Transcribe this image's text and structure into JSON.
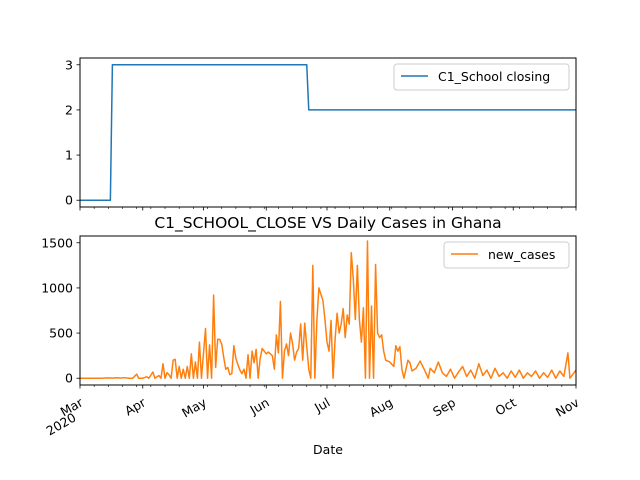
{
  "chart_data": [
    {
      "type": "line",
      "title": "",
      "xlabel": "",
      "ylabel": "",
      "x_range": [
        "2020-03-01",
        "2020-11-01"
      ],
      "ylim": [
        -0.15,
        3.15
      ],
      "yticks": [
        "0",
        "1",
        "2",
        "3"
      ],
      "grid": false,
      "legend_position": "top-right",
      "series": [
        {
          "name": "C1_School closing",
          "color": "#1f77b4",
          "points": [
            [
              "2020-03-01",
              0
            ],
            [
              "2020-03-16",
              0
            ],
            [
              "2020-03-17",
              3
            ],
            [
              "2020-06-21",
              3
            ],
            [
              "2020-06-22",
              2
            ],
            [
              "2020-11-01",
              2
            ]
          ]
        }
      ]
    },
    {
      "type": "line",
      "title": "C1_SCHOOL_CLOSE VS Daily Cases in Ghana",
      "xlabel": "Date",
      "ylabel": "",
      "x_range": [
        "2020-03-01",
        "2020-11-01"
      ],
      "ylim": [
        -75,
        1575
      ],
      "yticks": [
        "0",
        "500",
        "1000",
        "1500"
      ],
      "xticks": [
        {
          "date": "2020-03-01",
          "label": "Mar",
          "sublabel": "2020"
        },
        {
          "date": "2020-04-01",
          "label": "Apr"
        },
        {
          "date": "2020-05-01",
          "label": "May"
        },
        {
          "date": "2020-06-01",
          "label": "Jun"
        },
        {
          "date": "2020-07-01",
          "label": "Jul"
        },
        {
          "date": "2020-08-01",
          "label": "Aug"
        },
        {
          "date": "2020-09-01",
          "label": "Sep"
        },
        {
          "date": "2020-10-01",
          "label": "Oct"
        },
        {
          "date": "2020-11-01",
          "label": "Nov"
        }
      ],
      "grid": false,
      "legend_position": "top-right",
      "series": [
        {
          "name": "new_cases",
          "color": "#ff7f0e",
          "points": [
            [
              "2020-03-01",
              0
            ],
            [
              "2020-03-12",
              0
            ],
            [
              "2020-03-13",
              2
            ],
            [
              "2020-03-15",
              4
            ],
            [
              "2020-03-17",
              1
            ],
            [
              "2020-03-19",
              5
            ],
            [
              "2020-03-21",
              3
            ],
            [
              "2020-03-23",
              6
            ],
            [
              "2020-03-25",
              0
            ],
            [
              "2020-03-27",
              0
            ],
            [
              "2020-03-29",
              45
            ],
            [
              "2020-03-30",
              0
            ],
            [
              "2020-04-01",
              0
            ],
            [
              "2020-04-03",
              16
            ],
            [
              "2020-04-04",
              0
            ],
            [
              "2020-04-06",
              69
            ],
            [
              "2020-04-07",
              0
            ],
            [
              "2020-04-09",
              30
            ],
            [
              "2020-04-10",
              0
            ],
            [
              "2020-04-11",
              160
            ],
            [
              "2020-04-12",
              0
            ],
            [
              "2020-04-13",
              62
            ],
            [
              "2020-04-14",
              37
            ],
            [
              "2020-04-15",
              0
            ],
            [
              "2020-04-16",
              200
            ],
            [
              "2020-04-17",
              210
            ],
            [
              "2020-04-18",
              0
            ],
            [
              "2020-04-19",
              130
            ],
            [
              "2020-04-20",
              0
            ],
            [
              "2020-04-21",
              100
            ],
            [
              "2020-04-22",
              0
            ],
            [
              "2020-04-23",
              130
            ],
            [
              "2020-04-24",
              0
            ],
            [
              "2020-04-25",
              270
            ],
            [
              "2020-04-26",
              0
            ],
            [
              "2020-04-27",
              180
            ],
            [
              "2020-04-28",
              0
            ],
            [
              "2020-04-29",
              400
            ],
            [
              "2020-04-30",
              0
            ],
            [
              "2020-05-02",
              550
            ],
            [
              "2020-05-03",
              0
            ],
            [
              "2020-05-04",
              370
            ],
            [
              "2020-05-05",
              0
            ],
            [
              "2020-05-06",
              920
            ],
            [
              "2020-05-07",
              120
            ],
            [
              "2020-05-08",
              430
            ],
            [
              "2020-05-09",
              430
            ],
            [
              "2020-05-10",
              380
            ],
            [
              "2020-05-11",
              230
            ],
            [
              "2020-05-12",
              100
            ],
            [
              "2020-05-13",
              120
            ],
            [
              "2020-05-14",
              40
            ],
            [
              "2020-05-15",
              50
            ],
            [
              "2020-05-16",
              360
            ],
            [
              "2020-05-17",
              220
            ],
            [
              "2020-05-18",
              150
            ],
            [
              "2020-05-19",
              90
            ],
            [
              "2020-05-20",
              50
            ],
            [
              "2020-05-21",
              100
            ],
            [
              "2020-05-22",
              0
            ],
            [
              "2020-05-23",
              260
            ],
            [
              "2020-05-24",
              0
            ],
            [
              "2020-05-25",
              300
            ],
            [
              "2020-05-26",
              170
            ],
            [
              "2020-05-27",
              320
            ],
            [
              "2020-05-28",
              0
            ],
            [
              "2020-05-29",
              220
            ],
            [
              "2020-05-30",
              330
            ],
            [
              "2020-06-01",
              270
            ],
            [
              "2020-06-02",
              290
            ],
            [
              "2020-06-03",
              270
            ],
            [
              "2020-06-04",
              250
            ],
            [
              "2020-06-05",
              100
            ],
            [
              "2020-06-06",
              480
            ],
            [
              "2020-06-07",
              280
            ],
            [
              "2020-06-08",
              850
            ],
            [
              "2020-06-09",
              0
            ],
            [
              "2020-06-10",
              300
            ],
            [
              "2020-06-11",
              380
            ],
            [
              "2020-06-12",
              250
            ],
            [
              "2020-06-13",
              500
            ],
            [
              "2020-06-14",
              380
            ],
            [
              "2020-06-15",
              200
            ],
            [
              "2020-06-16",
              290
            ],
            [
              "2020-06-17",
              330
            ],
            [
              "2020-06-18",
              600
            ],
            [
              "2020-06-19",
              200
            ],
            [
              "2020-06-20",
              610
            ],
            [
              "2020-06-21",
              350
            ],
            [
              "2020-06-22",
              100
            ],
            [
              "2020-06-23",
              0
            ],
            [
              "2020-06-24",
              1250
            ],
            [
              "2020-06-25",
              0
            ],
            [
              "2020-06-26",
              640
            ],
            [
              "2020-06-27",
              1000
            ],
            [
              "2020-06-28",
              930
            ],
            [
              "2020-06-29",
              860
            ],
            [
              "2020-06-30",
              650
            ],
            [
              "2020-07-01",
              400
            ],
            [
              "2020-07-02",
              300
            ],
            [
              "2020-07-03",
              640
            ],
            [
              "2020-07-04",
              0
            ],
            [
              "2020-07-05",
              430
            ],
            [
              "2020-07-06",
              720
            ],
            [
              "2020-07-07",
              500
            ],
            [
              "2020-07-08",
              600
            ],
            [
              "2020-07-09",
              770
            ],
            [
              "2020-07-10",
              450
            ],
            [
              "2020-07-11",
              700
            ],
            [
              "2020-07-12",
              600
            ],
            [
              "2020-07-13",
              1390
            ],
            [
              "2020-07-14",
              1100
            ],
            [
              "2020-07-15",
              650
            ],
            [
              "2020-07-16",
              1250
            ],
            [
              "2020-07-17",
              650
            ],
            [
              "2020-07-18",
              400
            ],
            [
              "2020-07-19",
              780
            ],
            [
              "2020-07-20",
              0
            ],
            [
              "2020-07-21",
              1520
            ],
            [
              "2020-07-22",
              0
            ],
            [
              "2020-07-23",
              800
            ],
            [
              "2020-07-24",
              0
            ],
            [
              "2020-07-25",
              1260
            ],
            [
              "2020-07-26",
              500
            ],
            [
              "2020-07-27",
              450
            ],
            [
              "2020-07-28",
              480
            ],
            [
              "2020-07-29",
              300
            ],
            [
              "2020-07-30",
              200
            ],
            [
              "2020-08-01",
              180
            ],
            [
              "2020-08-03",
              130
            ],
            [
              "2020-08-04",
              360
            ],
            [
              "2020-08-05",
              300
            ],
            [
              "2020-08-06",
              350
            ],
            [
              "2020-08-07",
              100
            ],
            [
              "2020-08-08",
              0
            ],
            [
              "2020-08-10",
              200
            ],
            [
              "2020-08-11",
              170
            ],
            [
              "2020-08-12",
              80
            ],
            [
              "2020-08-14",
              110
            ],
            [
              "2020-08-16",
              190
            ],
            [
              "2020-08-18",
              100
            ],
            [
              "2020-08-20",
              0
            ],
            [
              "2020-08-21",
              110
            ],
            [
              "2020-08-23",
              60
            ],
            [
              "2020-08-25",
              180
            ],
            [
              "2020-08-27",
              60
            ],
            [
              "2020-08-29",
              20
            ],
            [
              "2020-08-31",
              100
            ],
            [
              "2020-09-02",
              0
            ],
            [
              "2020-09-04",
              70
            ],
            [
              "2020-09-06",
              130
            ],
            [
              "2020-09-08",
              20
            ],
            [
              "2020-09-10",
              90
            ],
            [
              "2020-09-12",
              0
            ],
            [
              "2020-09-14",
              160
            ],
            [
              "2020-09-16",
              30
            ],
            [
              "2020-09-18",
              90
            ],
            [
              "2020-09-20",
              0
            ],
            [
              "2020-09-22",
              110
            ],
            [
              "2020-09-24",
              20
            ],
            [
              "2020-09-26",
              60
            ],
            [
              "2020-09-28",
              0
            ],
            [
              "2020-09-30",
              80
            ],
            [
              "2020-10-02",
              10
            ],
            [
              "2020-10-04",
              90
            ],
            [
              "2020-10-06",
              0
            ],
            [
              "2020-10-08",
              60
            ],
            [
              "2020-10-10",
              20
            ],
            [
              "2020-10-12",
              80
            ],
            [
              "2020-10-14",
              0
            ],
            [
              "2020-10-16",
              60
            ],
            [
              "2020-10-18",
              10
            ],
            [
              "2020-10-20",
              90
            ],
            [
              "2020-10-22",
              0
            ],
            [
              "2020-10-24",
              80
            ],
            [
              "2020-10-26",
              20
            ],
            [
              "2020-10-28",
              280
            ],
            [
              "2020-10-29",
              0
            ],
            [
              "2020-10-31",
              60
            ],
            [
              "2020-11-01",
              90
            ]
          ]
        }
      ]
    }
  ]
}
